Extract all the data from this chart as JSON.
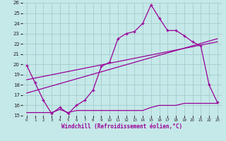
{
  "xlabel": "Windchill (Refroidissement éolien,°C)",
  "background_color": "#c5e8e8",
  "grid_color": "#a8d0d0",
  "line_color": "#990099",
  "xlim": [
    -0.5,
    23.5
  ],
  "ylim": [
    15,
    26
  ],
  "yticks": [
    15,
    16,
    17,
    18,
    19,
    20,
    21,
    22,
    23,
    24,
    25,
    26
  ],
  "xticks": [
    0,
    1,
    2,
    3,
    4,
    5,
    6,
    7,
    8,
    9,
    10,
    11,
    12,
    13,
    14,
    15,
    16,
    17,
    18,
    19,
    20,
    21,
    22,
    23
  ],
  "series1_x": [
    0,
    1,
    2,
    3,
    4,
    5,
    6,
    7,
    8,
    9,
    10,
    11,
    12,
    13,
    14,
    15,
    16,
    17,
    18,
    19,
    20,
    21,
    22,
    23
  ],
  "series1_y": [
    19.9,
    18.2,
    16.5,
    15.2,
    15.8,
    15.2,
    16.0,
    16.5,
    17.5,
    19.8,
    20.2,
    22.5,
    23.0,
    23.2,
    24.0,
    25.8,
    24.5,
    23.3,
    23.3,
    22.8,
    22.2,
    21.8,
    18.0,
    16.3
  ],
  "series2_x": [
    0,
    1,
    2,
    3,
    4,
    5,
    6,
    7,
    8,
    9,
    10,
    11,
    12,
    13,
    14,
    15,
    16,
    17,
    18,
    19,
    20,
    21,
    22,
    23
  ],
  "series2_y": [
    15.3,
    15.3,
    15.3,
    15.3,
    15.6,
    15.3,
    15.5,
    15.5,
    15.5,
    15.5,
    15.5,
    15.5,
    15.5,
    15.5,
    15.5,
    15.8,
    16.0,
    16.0,
    16.0,
    16.2,
    16.2,
    16.2,
    16.2,
    16.2
  ],
  "series3_x": [
    0,
    23
  ],
  "series3_y": [
    17.2,
    22.5
  ],
  "series4_x": [
    0,
    23
  ],
  "series4_y": [
    18.5,
    22.2
  ]
}
